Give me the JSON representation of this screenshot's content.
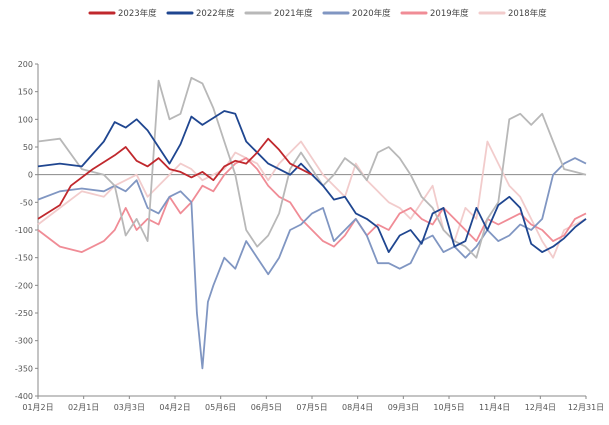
{
  "chart_data": {
    "type": "line",
    "title": "",
    "xlabel": "",
    "ylabel": "",
    "ylim": [
      -400,
      200
    ],
    "yticks": [
      200,
      150,
      100,
      50,
      0,
      -50,
      -100,
      -150,
      -200,
      -250,
      -300,
      -350,
      -400
    ],
    "x_tick_labels": [
      "01月2日",
      "02月1日",
      "03月3日",
      "04月2日",
      "05月6日",
      "06月5日",
      "07月5日",
      "08月4日",
      "09月3日",
      "10月5日",
      "11月4日",
      "12月4日",
      "12月31日"
    ],
    "legend_position": "top-center",
    "grid": false,
    "series": [
      {
        "name": "2023年度",
        "color": "#c0282d",
        "x": [
          0,
          4,
          6,
          10,
          14,
          16,
          18,
          20,
          22,
          24,
          26,
          28,
          30,
          32,
          34,
          36,
          38,
          40,
          42,
          44,
          46,
          48,
          50
        ],
        "values": [
          -80,
          -55,
          -20,
          10,
          35,
          50,
          25,
          15,
          30,
          10,
          5,
          -5,
          5,
          -10,
          15,
          25,
          20,
          40,
          65,
          45,
          20,
          10,
          0
        ]
      },
      {
        "name": "2022年度",
        "color": "#1f4690",
        "x": [
          0,
          4,
          8,
          12,
          14,
          16,
          18,
          20,
          24,
          26,
          28,
          30,
          34,
          36,
          38,
          42,
          44,
          46,
          48,
          52,
          54,
          56,
          58,
          60,
          62,
          64,
          66,
          68,
          70,
          72,
          74,
          76,
          78,
          80,
          82,
          84,
          86,
          88,
          90,
          92,
          94,
          96,
          98,
          100
        ],
        "values": [
          15,
          20,
          15,
          60,
          95,
          85,
          100,
          80,
          20,
          55,
          105,
          90,
          115,
          110,
          60,
          20,
          10,
          0,
          20,
          -20,
          -45,
          -40,
          -70,
          -80,
          -95,
          -140,
          -110,
          -100,
          -125,
          -70,
          -60,
          -130,
          -120,
          -60,
          -100,
          -55,
          -40,
          -60,
          -125,
          -140,
          -130,
          -115,
          -95,
          -80
        ]
      },
      {
        "name": "2021年度",
        "color": "#b8b8b8",
        "x": [
          0,
          4,
          8,
          12,
          14,
          16,
          18,
          20,
          22,
          24,
          26,
          28,
          30,
          32,
          34,
          36,
          38,
          40,
          42,
          44,
          46,
          48,
          50,
          52,
          54,
          56,
          58,
          60,
          62,
          64,
          66,
          68,
          70,
          72,
          74,
          76,
          78,
          80,
          82,
          84,
          86,
          88,
          90,
          92,
          94,
          96,
          98,
          100
        ],
        "values": [
          60,
          65,
          10,
          0,
          -20,
          -110,
          -80,
          -120,
          170,
          100,
          110,
          175,
          165,
          120,
          60,
          0,
          -100,
          -130,
          -110,
          -70,
          10,
          40,
          10,
          -20,
          0,
          30,
          15,
          -10,
          40,
          50,
          30,
          0,
          -40,
          -60,
          -100,
          -120,
          -130,
          -150,
          -80,
          -50,
          100,
          110,
          90,
          110,
          60,
          10,
          5,
          0
        ]
      },
      {
        "name": "2020年度",
        "color": "#8096c2",
        "x": [
          0,
          4,
          8,
          12,
          14,
          16,
          18,
          20,
          22,
          24,
          26,
          28,
          29,
          30,
          31,
          32,
          34,
          36,
          38,
          40,
          42,
          44,
          46,
          48,
          50,
          52,
          54,
          56,
          58,
          60,
          62,
          64,
          66,
          68,
          70,
          72,
          74,
          76,
          78,
          80,
          82,
          84,
          86,
          88,
          90,
          92,
          94,
          96,
          98,
          100
        ],
        "values": [
          -45,
          -30,
          -25,
          -30,
          -20,
          -30,
          -10,
          -60,
          -70,
          -40,
          -30,
          -50,
          -250,
          -350,
          -230,
          -200,
          -150,
          -170,
          -120,
          -150,
          -180,
          -150,
          -100,
          -90,
          -70,
          -60,
          -120,
          -100,
          -80,
          -110,
          -160,
          -160,
          -170,
          -160,
          -120,
          -110,
          -140,
          -130,
          -150,
          -130,
          -100,
          -120,
          -110,
          -90,
          -100,
          -80,
          0,
          20,
          30,
          20
        ]
      },
      {
        "name": "2019年度",
        "color": "#f08c96",
        "x": [
          0,
          4,
          8,
          12,
          14,
          16,
          18,
          20,
          22,
          24,
          26,
          28,
          30,
          32,
          34,
          36,
          38,
          40,
          42,
          44,
          46,
          48,
          50,
          52,
          54,
          56,
          58,
          60,
          62,
          64,
          66,
          68,
          70,
          72,
          74,
          76,
          78,
          80,
          82,
          84,
          86,
          88,
          90,
          92,
          94,
          96,
          98,
          100
        ],
        "values": [
          -100,
          -130,
          -140,
          -120,
          -100,
          -60,
          -100,
          -80,
          -90,
          -40,
          -70,
          -50,
          -20,
          -30,
          0,
          20,
          30,
          10,
          -20,
          -40,
          -50,
          -80,
          -100,
          -120,
          -130,
          -110,
          -80,
          -110,
          -90,
          -100,
          -70,
          -60,
          -80,
          -90,
          -60,
          -80,
          -100,
          -120,
          -80,
          -90,
          -80,
          -70,
          -90,
          -100,
          -120,
          -110,
          -80,
          -70
        ]
      },
      {
        "name": "2018年度",
        "color": "#f2cccc",
        "x": [
          0,
          4,
          8,
          12,
          14,
          16,
          18,
          20,
          22,
          24,
          26,
          28,
          30,
          32,
          34,
          36,
          38,
          40,
          42,
          44,
          46,
          48,
          50,
          52,
          54,
          56,
          58,
          60,
          62,
          64,
          66,
          68,
          70,
          72,
          74,
          76,
          78,
          80,
          82,
          84,
          86,
          88,
          90,
          92,
          94,
          96,
          98,
          100
        ],
        "values": [
          -90,
          -60,
          -30,
          -40,
          -20,
          -10,
          0,
          -40,
          -20,
          0,
          20,
          10,
          -10,
          0,
          10,
          40,
          30,
          20,
          -10,
          20,
          40,
          60,
          30,
          0,
          -20,
          -40,
          20,
          -10,
          -30,
          -50,
          -60,
          -80,
          -50,
          -20,
          -100,
          -120,
          -60,
          -80,
          60,
          20,
          -20,
          -40,
          -80,
          -120,
          -150,
          -100,
          -90,
          -80
        ]
      }
    ]
  }
}
